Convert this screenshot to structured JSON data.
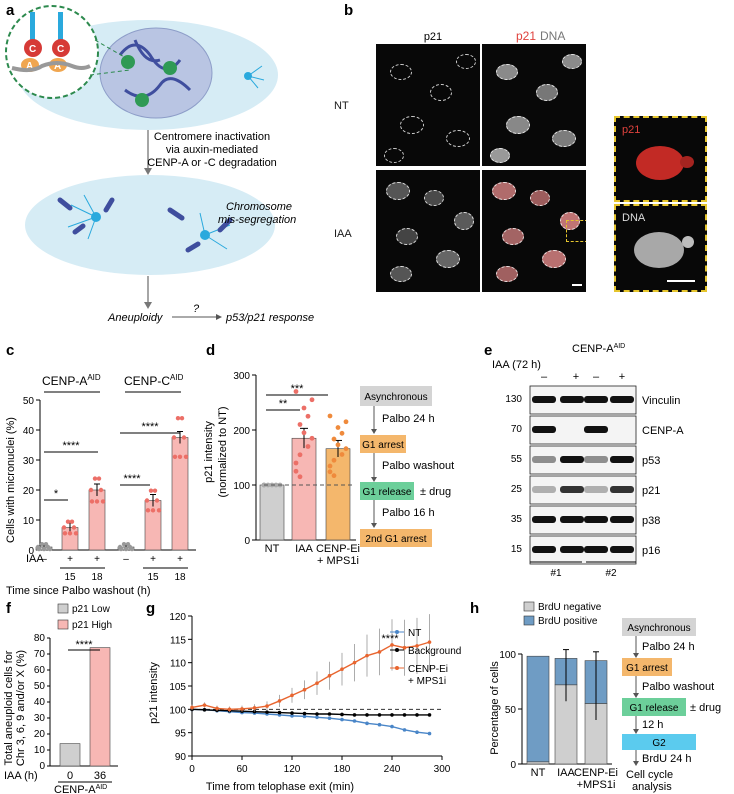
{
  "panels": {
    "a": {
      "label": "a",
      "cenp_letters": [
        "C",
        "A",
        "C",
        "A"
      ],
      "step1": [
        "Centromere inactivation",
        "via auxin-mediated",
        "CENP-A or -C degradation"
      ],
      "missegregation": [
        "Chromosome",
        "mis-segregation"
      ],
      "aneuploidy": "Aneuploidy",
      "question": "?",
      "response": "p53/p21 response"
    },
    "b": {
      "label": "b",
      "col_p21": "p21",
      "col_merge_p21": "p21",
      "col_merge_dna": "DNA",
      "row_nt": "NT",
      "row_iaa": "IAA",
      "inset_p21": "p21",
      "inset_dna": "DNA"
    },
    "c": {
      "label": "c",
      "ylabel": "Cells with micronuclei (%)",
      "xlabel": "Time since Palbo washout (h)",
      "iaa_label": "IAA",
      "group1": "CENP-A",
      "group2": "CENP-C",
      "superscript": "AID",
      "iaa_signs": [
        "–",
        "+",
        "+",
        "–",
        "+",
        "+"
      ],
      "times": [
        "15",
        "18",
        "15",
        "18"
      ],
      "sig": [
        "*",
        "****",
        "****",
        "****"
      ],
      "yticks": [
        "0",
        "10",
        "20",
        "30",
        "40",
        "50"
      ]
    },
    "d": {
      "label": "d",
      "ylabel1": "p21 intensity",
      "ylabel2": "(normalized to NT)",
      "cats": [
        "NT",
        "IAA",
        "CENP-Ei",
        "+ MPS1i"
      ],
      "sig": [
        "**",
        "***"
      ],
      "yticks": [
        "0",
        "100",
        "200",
        "300"
      ],
      "flow": [
        "Asynchronous",
        "Palbo 24 h",
        "G1 arrest",
        "Palbo washout",
        "G1 release",
        "± drug",
        "Palbo 16 h",
        "2nd G1 arrest"
      ]
    },
    "e": {
      "label": "e",
      "header": "CENP-A",
      "superscript": "AID",
      "iaa": "IAA (72 h)",
      "signs": [
        "–",
        "+",
        "–",
        "+"
      ],
      "clones": [
        "#1",
        "#2"
      ],
      "blots": [
        {
          "name": "Vinculin",
          "mw": "130"
        },
        {
          "name": "CENP-A",
          "mw": "70"
        },
        {
          "name": "p53",
          "mw": "55"
        },
        {
          "name": "p21",
          "mw": "25"
        },
        {
          "name": "p38",
          "mw": "35"
        },
        {
          "name": "p16",
          "mw": "15"
        }
      ]
    },
    "f": {
      "label": "f",
      "ylabel1": "Total aneuploid cells for",
      "ylabel2": "Chr 3, 6, 9 and/or X (%)",
      "legend_low": "p21 Low",
      "legend_high": "p21 High",
      "iaa_label": "IAA (h)",
      "cats": [
        "0",
        "36"
      ],
      "xlabel": "CENP-A",
      "superscript": "AID",
      "sig": "****",
      "yticks": [
        "0",
        "10",
        "20",
        "30",
        "40",
        "50",
        "60",
        "70",
        "80"
      ]
    },
    "g": {
      "label": "g",
      "ylabel": "p21 intensity",
      "xlabel": "Time from telophase exit (min)",
      "sig": "****",
      "legend": [
        "NT",
        "Background",
        "CENP-Ei",
        "+ MPS1i"
      ],
      "xticks": [
        "0",
        "60",
        "120",
        "180",
        "240",
        "300"
      ],
      "yticks": [
        "90",
        "95",
        "100",
        "105",
        "110",
        "115",
        "120"
      ]
    },
    "h": {
      "label": "h",
      "ylabel": "Percentage of cells",
      "legend_neg": "BrdU negative",
      "legend_pos": "BrdU positive",
      "cats": [
        "NT",
        "IAA",
        "CENP-Ei",
        "+MPS1i"
      ],
      "yticks": [
        "0",
        "50",
        "100"
      ],
      "flow": [
        "Asynchronous",
        "Palbo 24 h",
        "G1 arrest",
        "Palbo washout",
        "G1 release",
        "± drug",
        "12 h",
        "G2",
        "BrdU 24 h",
        "Cell cycle",
        "analysis"
      ]
    }
  },
  "colors": {
    "pink": "#f7b7b4",
    "pink_dot": "#ec6f67",
    "orange": "#f4b76c",
    "orange_dot": "#ef8a3c",
    "grey": "#cfcfcf",
    "blue_bar": "#6f9cc4",
    "nt_line": "#4a86c8",
    "cenp_line": "#e8652f",
    "flow_grey": "#d4d4d4",
    "flow_orange": "#f4b76c",
    "flow_green": "#6ccf9a",
    "flow_cyan": "#5bcbee"
  },
  "chart_data": [
    {
      "type": "bar",
      "panel": "c",
      "categories": [
        "CENP-A – ",
        "CENP-A + 15",
        "CENP-A + 18",
        "CENP-C –",
        "CENP-C + 15",
        "CENP-C + 18"
      ],
      "values": [
        1,
        7.5,
        20,
        1,
        16.5,
        37.5
      ],
      "errors": [
        0.5,
        2,
        2,
        0.5,
        2,
        2
      ],
      "ylim": [
        0,
        50
      ],
      "ylabel": "Cells with micronuclei (%)",
      "xlabel": "Time since Palbo washout (h)"
    },
    {
      "type": "bar",
      "panel": "d",
      "categories": [
        "NT",
        "IAA",
        "CENP-Ei + MPS1i"
      ],
      "values": [
        100,
        185,
        166
      ],
      "errors": [
        0,
        18,
        15
      ],
      "ylim": [
        0,
        300
      ],
      "ylabel": "p21 intensity (normalized to NT)"
    },
    {
      "type": "bar",
      "panel": "f",
      "categories": [
        "0",
        "36"
      ],
      "values": [
        14,
        74
      ],
      "ylim": [
        0,
        80
      ],
      "ylabel": "Total aneuploid cells for Chr 3, 6, 9 and/or X (%)",
      "xlabel": "IAA (h)"
    },
    {
      "type": "line",
      "panel": "g",
      "x": [
        0,
        15,
        30,
        45,
        60,
        75,
        90,
        105,
        120,
        135,
        150,
        165,
        180,
        195,
        210,
        225,
        240,
        255,
        270,
        285
      ],
      "series": [
        {
          "name": "NT",
          "values": [
            100,
            99.9,
            99.7,
            99.5,
            99.3,
            99.2,
            99,
            98.8,
            98.6,
            98.5,
            98.3,
            98.1,
            97.8,
            97.5,
            97,
            96.7,
            96.3,
            95.6,
            95.1,
            94.8
          ]
        },
        {
          "name": "Background",
          "values": [
            100,
            99.9,
            99.8,
            99.7,
            99.6,
            99.5,
            99.4,
            99.3,
            99.2,
            99.1,
            99,
            99,
            98.9,
            98.8,
            98.8,
            98.8,
            98.8,
            98.8,
            98.8,
            98.8
          ]
        },
        {
          "name": "CENP-Ei + MPS1i",
          "values": [
            100.4,
            100.9,
            100.2,
            100,
            100.1,
            100.3,
            100.7,
            101.8,
            103,
            104.2,
            105.6,
            107.2,
            108.6,
            110,
            111.5,
            112.3,
            113.8,
            113.2,
            113.6,
            114.4
          ]
        }
      ],
      "errors_cenp": [
        0.6,
        0.6,
        0.6,
        0.6,
        0.7,
        0.8,
        1,
        1.3,
        1.6,
        2,
        2.5,
        3,
        3.5,
        4,
        4.5,
        5,
        5.5,
        6,
        6,
        6
      ],
      "xlim": [
        0,
        300
      ],
      "ylim": [
        90,
        120
      ],
      "ylabel": "p21 intensity",
      "xlabel": "Time from telophase exit (min)"
    },
    {
      "type": "bar",
      "panel": "h",
      "categories": [
        "NT",
        "IAA",
        "CENP-Ei +MPS1i"
      ],
      "series": [
        {
          "name": "BrdU negative",
          "values": [
            2,
            72,
            55
          ]
        },
        {
          "name": "BrdU positive",
          "values": [
            96,
            24,
            39
          ]
        }
      ],
      "ylim": [
        0,
        100
      ],
      "ylabel": "Percentage of cells"
    }
  ]
}
